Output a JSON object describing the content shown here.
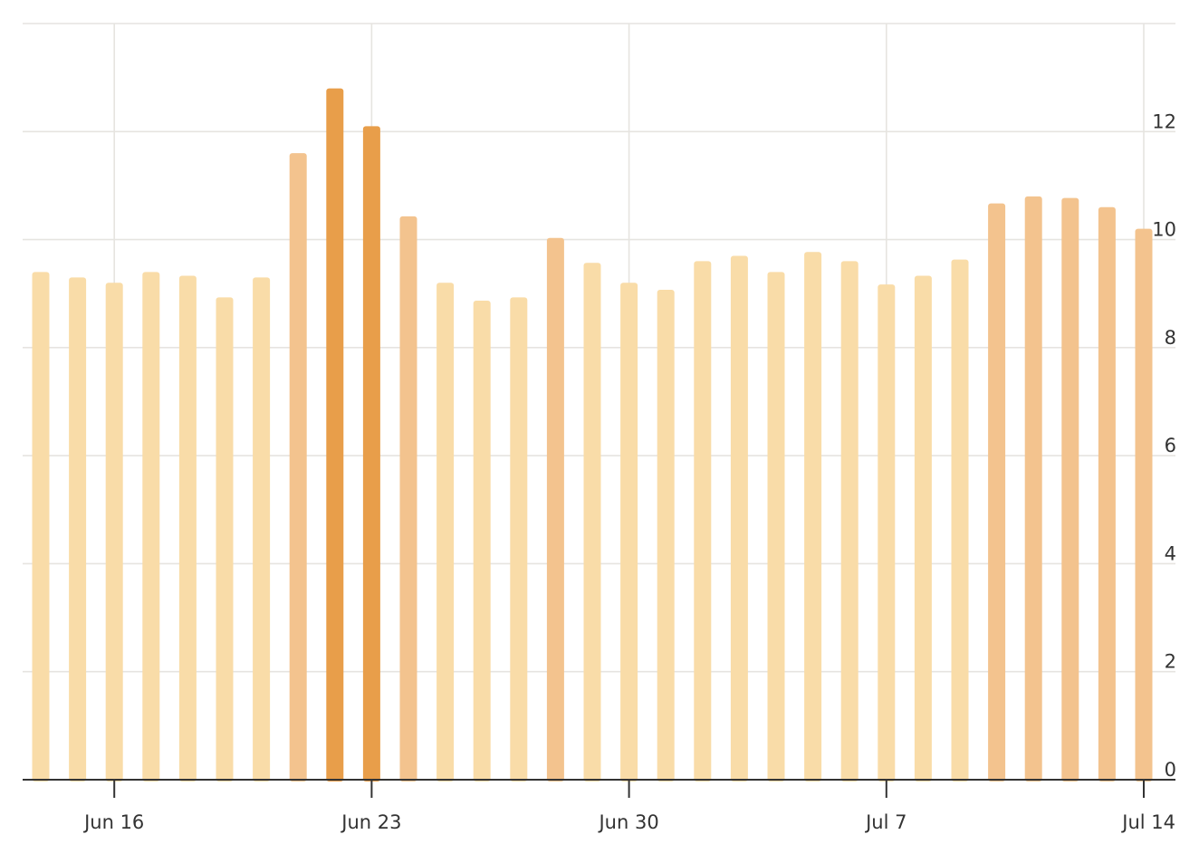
{
  "chart_data": {
    "type": "bar",
    "x": [
      "Jun 14",
      "Jun 15",
      "Jun 16",
      "Jun 17",
      "Jun 18",
      "Jun 19",
      "Jun 20",
      "Jun 21",
      "Jun 22",
      "Jun 23",
      "Jun 24",
      "Jun 25",
      "Jun 26",
      "Jun 27",
      "Jun 28",
      "Jun 29",
      "Jun 30",
      "Jul 1",
      "Jul 2",
      "Jul 3",
      "Jul 4",
      "Jul 5",
      "Jul 6",
      "Jul 7",
      "Jul 8",
      "Jul 9",
      "Jul 10",
      "Jul 11",
      "Jul 12",
      "Jul 13",
      "Jul 14"
    ],
    "values": [
      9.4,
      9.3,
      9.2,
      9.4,
      9.33,
      8.93,
      9.3,
      11.6,
      12.8,
      12.1,
      10.43,
      9.2,
      8.87,
      8.93,
      10.03,
      9.57,
      9.2,
      9.07,
      9.6,
      9.7,
      9.4,
      9.77,
      9.6,
      9.17,
      9.33,
      9.63,
      10.67,
      10.8,
      10.77,
      10.6,
      10.2
    ],
    "intensity": [
      1,
      1,
      1,
      1,
      1,
      1,
      1,
      2,
      3,
      3,
      2,
      1,
      1,
      1,
      2,
      1,
      1,
      1,
      1,
      1,
      1,
      1,
      1,
      1,
      1,
      1,
      2,
      2,
      2,
      2,
      2
    ],
    "colors": {
      "1": "#f9dca8",
      "2": "#f3c38e",
      "3": "#e89e4a"
    },
    "x_ticks": [
      "Jun 16",
      "Jun 23",
      "Jun 30",
      "Jul 7",
      "Jul 14"
    ],
    "y_ticks": [
      0,
      2,
      4,
      6,
      8,
      10,
      12
    ],
    "ylim": [
      0,
      14
    ],
    "title": "",
    "xlabel": "",
    "ylabel": "",
    "grid": true,
    "y_axis_side": "right"
  }
}
